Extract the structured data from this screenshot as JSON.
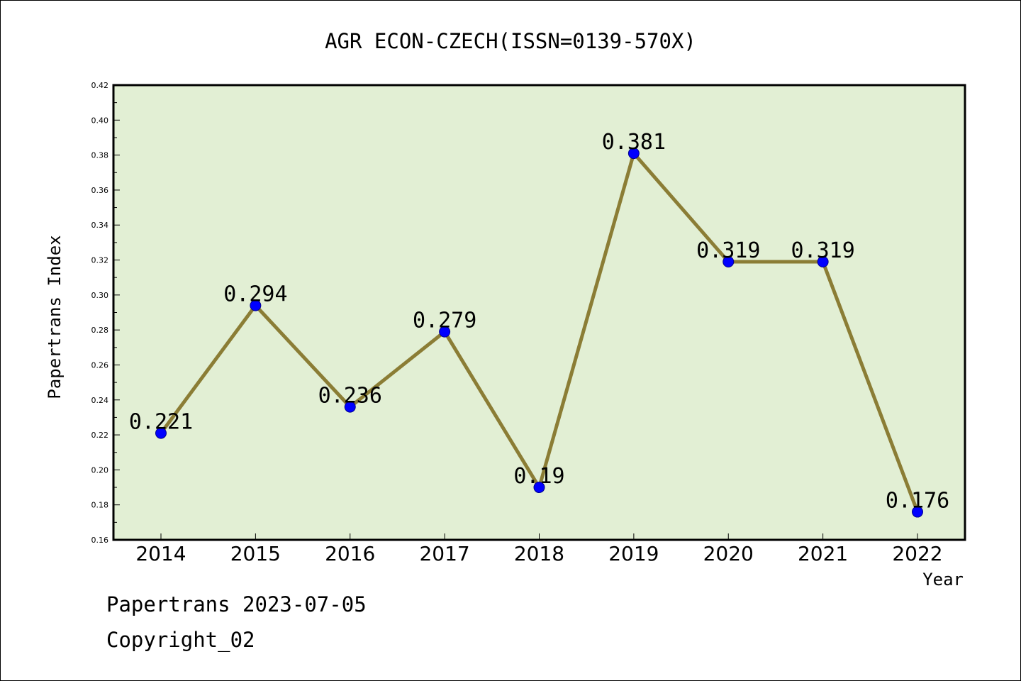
{
  "chart_data": {
    "type": "line",
    "title": "AGR ECON-CZECH(ISSN=0139-570X)",
    "xlabel": "Year",
    "ylabel": "Papertrans Index",
    "categories": [
      "2014",
      "2015",
      "2016",
      "2017",
      "2018",
      "2019",
      "2020",
      "2021",
      "2022"
    ],
    "series": [
      {
        "values": [
          0.221,
          0.294,
          0.236,
          0.279,
          0.19,
          0.381,
          0.319,
          0.319,
          0.176
        ],
        "data_labels": [
          "0.221",
          "0.294",
          "0.236",
          "0.279",
          "0.19",
          "0.381",
          "0.319",
          "0.319",
          "0.176"
        ]
      }
    ],
    "ylim": [
      0.16,
      0.42
    ],
    "yticks": [
      "0.16",
      "0.18",
      "0.20",
      "0.22",
      "0.24",
      "0.26",
      "0.28",
      "0.30",
      "0.32",
      "0.34",
      "0.36",
      "0.38",
      "0.40",
      "0.42"
    ],
    "grid": false,
    "legend": "none",
    "colors": {
      "plot_background": "#e2efd4",
      "line": "#8b7d35",
      "marker": "#0000ff",
      "axis": "#000000"
    }
  },
  "footer": {
    "line1": "Papertrans 2023-07-05",
    "line2": "Copyright_02"
  }
}
